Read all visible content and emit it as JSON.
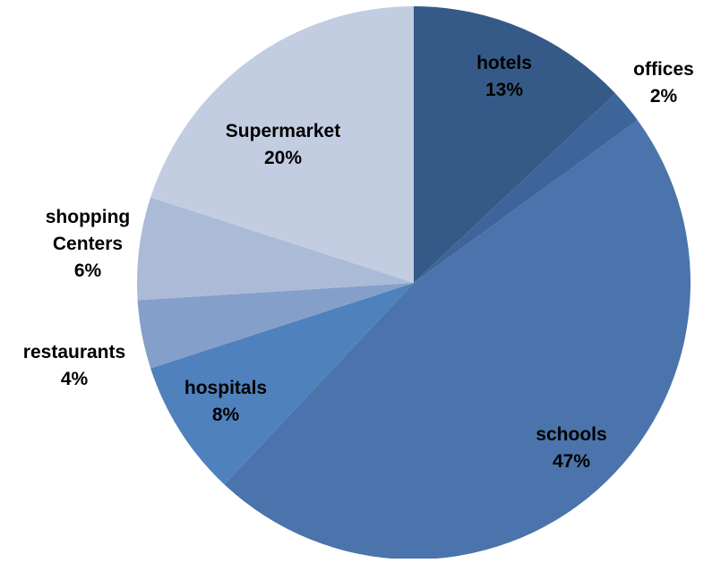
{
  "chart_data": {
    "type": "pie",
    "title": "",
    "start_angle_deg": 0,
    "direction": "clockwise",
    "slices": [
      {
        "label": "hotels",
        "percent_label": "13%",
        "value": 13,
        "color": "#365A87"
      },
      {
        "label": "offices",
        "percent_label": "2%",
        "value": 2,
        "color": "#3E659A"
      },
      {
        "label": "schools",
        "percent_label": "47%",
        "value": 47,
        "color": "#4A74AB"
      },
      {
        "label": "hospitals",
        "percent_label": "8%",
        "value": 8,
        "color": "#4F81BD"
      },
      {
        "label": "restaurants",
        "percent_label": "4%",
        "value": 4,
        "color": "#859FCB"
      },
      {
        "label": "shopping Centers",
        "percent_label": "6%",
        "value": 6,
        "color": "#ABBAD7"
      },
      {
        "label": "Supermarket",
        "percent_label": "20%",
        "value": 20,
        "color": "#C3CDE1"
      }
    ]
  }
}
